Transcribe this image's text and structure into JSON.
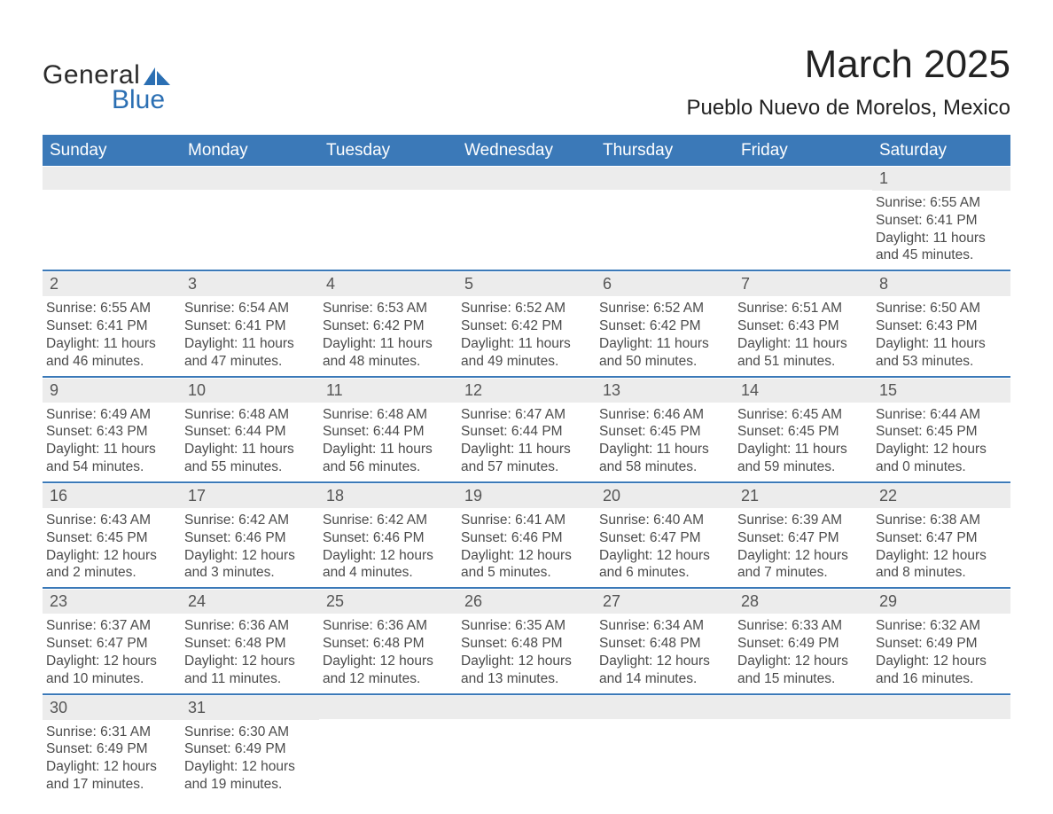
{
  "logo": {
    "general": "General",
    "blue": "Blue",
    "sail_color": "#2b6fb3"
  },
  "title": "March 2025",
  "location": "Pueblo Nuevo de Morelos, Mexico",
  "colors": {
    "header_bg": "#3b79b8",
    "header_text": "#ffffff",
    "row_divider": "#3b79b8",
    "daynum_bg": "#ececec",
    "body_text": "#4b4b4b",
    "page_bg": "#ffffff"
  },
  "daysOfWeek": [
    "Sunday",
    "Monday",
    "Tuesday",
    "Wednesday",
    "Thursday",
    "Friday",
    "Saturday"
  ],
  "grid": [
    [
      {
        "n": "",
        "sr": "",
        "ss": "",
        "dl": ""
      },
      {
        "n": "",
        "sr": "",
        "ss": "",
        "dl": ""
      },
      {
        "n": "",
        "sr": "",
        "ss": "",
        "dl": ""
      },
      {
        "n": "",
        "sr": "",
        "ss": "",
        "dl": ""
      },
      {
        "n": "",
        "sr": "",
        "ss": "",
        "dl": ""
      },
      {
        "n": "",
        "sr": "",
        "ss": "",
        "dl": ""
      },
      {
        "n": "1",
        "sr": "Sunrise: 6:55 AM",
        "ss": "Sunset: 6:41 PM",
        "dl": "Daylight: 11 hours and 45 minutes."
      }
    ],
    [
      {
        "n": "2",
        "sr": "Sunrise: 6:55 AM",
        "ss": "Sunset: 6:41 PM",
        "dl": "Daylight: 11 hours and 46 minutes."
      },
      {
        "n": "3",
        "sr": "Sunrise: 6:54 AM",
        "ss": "Sunset: 6:41 PM",
        "dl": "Daylight: 11 hours and 47 minutes."
      },
      {
        "n": "4",
        "sr": "Sunrise: 6:53 AM",
        "ss": "Sunset: 6:42 PM",
        "dl": "Daylight: 11 hours and 48 minutes."
      },
      {
        "n": "5",
        "sr": "Sunrise: 6:52 AM",
        "ss": "Sunset: 6:42 PM",
        "dl": "Daylight: 11 hours and 49 minutes."
      },
      {
        "n": "6",
        "sr": "Sunrise: 6:52 AM",
        "ss": "Sunset: 6:42 PM",
        "dl": "Daylight: 11 hours and 50 minutes."
      },
      {
        "n": "7",
        "sr": "Sunrise: 6:51 AM",
        "ss": "Sunset: 6:43 PM",
        "dl": "Daylight: 11 hours and 51 minutes."
      },
      {
        "n": "8",
        "sr": "Sunrise: 6:50 AM",
        "ss": "Sunset: 6:43 PM",
        "dl": "Daylight: 11 hours and 53 minutes."
      }
    ],
    [
      {
        "n": "9",
        "sr": "Sunrise: 6:49 AM",
        "ss": "Sunset: 6:43 PM",
        "dl": "Daylight: 11 hours and 54 minutes."
      },
      {
        "n": "10",
        "sr": "Sunrise: 6:48 AM",
        "ss": "Sunset: 6:44 PM",
        "dl": "Daylight: 11 hours and 55 minutes."
      },
      {
        "n": "11",
        "sr": "Sunrise: 6:48 AM",
        "ss": "Sunset: 6:44 PM",
        "dl": "Daylight: 11 hours and 56 minutes."
      },
      {
        "n": "12",
        "sr": "Sunrise: 6:47 AM",
        "ss": "Sunset: 6:44 PM",
        "dl": "Daylight: 11 hours and 57 minutes."
      },
      {
        "n": "13",
        "sr": "Sunrise: 6:46 AM",
        "ss": "Sunset: 6:45 PM",
        "dl": "Daylight: 11 hours and 58 minutes."
      },
      {
        "n": "14",
        "sr": "Sunrise: 6:45 AM",
        "ss": "Sunset: 6:45 PM",
        "dl": "Daylight: 11 hours and 59 minutes."
      },
      {
        "n": "15",
        "sr": "Sunrise: 6:44 AM",
        "ss": "Sunset: 6:45 PM",
        "dl": "Daylight: 12 hours and 0 minutes."
      }
    ],
    [
      {
        "n": "16",
        "sr": "Sunrise: 6:43 AM",
        "ss": "Sunset: 6:45 PM",
        "dl": "Daylight: 12 hours and 2 minutes."
      },
      {
        "n": "17",
        "sr": "Sunrise: 6:42 AM",
        "ss": "Sunset: 6:46 PM",
        "dl": "Daylight: 12 hours and 3 minutes."
      },
      {
        "n": "18",
        "sr": "Sunrise: 6:42 AM",
        "ss": "Sunset: 6:46 PM",
        "dl": "Daylight: 12 hours and 4 minutes."
      },
      {
        "n": "19",
        "sr": "Sunrise: 6:41 AM",
        "ss": "Sunset: 6:46 PM",
        "dl": "Daylight: 12 hours and 5 minutes."
      },
      {
        "n": "20",
        "sr": "Sunrise: 6:40 AM",
        "ss": "Sunset: 6:47 PM",
        "dl": "Daylight: 12 hours and 6 minutes."
      },
      {
        "n": "21",
        "sr": "Sunrise: 6:39 AM",
        "ss": "Sunset: 6:47 PM",
        "dl": "Daylight: 12 hours and 7 minutes."
      },
      {
        "n": "22",
        "sr": "Sunrise: 6:38 AM",
        "ss": "Sunset: 6:47 PM",
        "dl": "Daylight: 12 hours and 8 minutes."
      }
    ],
    [
      {
        "n": "23",
        "sr": "Sunrise: 6:37 AM",
        "ss": "Sunset: 6:47 PM",
        "dl": "Daylight: 12 hours and 10 minutes."
      },
      {
        "n": "24",
        "sr": "Sunrise: 6:36 AM",
        "ss": "Sunset: 6:48 PM",
        "dl": "Daylight: 12 hours and 11 minutes."
      },
      {
        "n": "25",
        "sr": "Sunrise: 6:36 AM",
        "ss": "Sunset: 6:48 PM",
        "dl": "Daylight: 12 hours and 12 minutes."
      },
      {
        "n": "26",
        "sr": "Sunrise: 6:35 AM",
        "ss": "Sunset: 6:48 PM",
        "dl": "Daylight: 12 hours and 13 minutes."
      },
      {
        "n": "27",
        "sr": "Sunrise: 6:34 AM",
        "ss": "Sunset: 6:48 PM",
        "dl": "Daylight: 12 hours and 14 minutes."
      },
      {
        "n": "28",
        "sr": "Sunrise: 6:33 AM",
        "ss": "Sunset: 6:49 PM",
        "dl": "Daylight: 12 hours and 15 minutes."
      },
      {
        "n": "29",
        "sr": "Sunrise: 6:32 AM",
        "ss": "Sunset: 6:49 PM",
        "dl": "Daylight: 12 hours and 16 minutes."
      }
    ],
    [
      {
        "n": "30",
        "sr": "Sunrise: 6:31 AM",
        "ss": "Sunset: 6:49 PM",
        "dl": "Daylight: 12 hours and 17 minutes."
      },
      {
        "n": "31",
        "sr": "Sunrise: 6:30 AM",
        "ss": "Sunset: 6:49 PM",
        "dl": "Daylight: 12 hours and 19 minutes."
      },
      {
        "n": "",
        "sr": "",
        "ss": "",
        "dl": ""
      },
      {
        "n": "",
        "sr": "",
        "ss": "",
        "dl": ""
      },
      {
        "n": "",
        "sr": "",
        "ss": "",
        "dl": ""
      },
      {
        "n": "",
        "sr": "",
        "ss": "",
        "dl": ""
      },
      {
        "n": "",
        "sr": "",
        "ss": "",
        "dl": ""
      }
    ]
  ]
}
